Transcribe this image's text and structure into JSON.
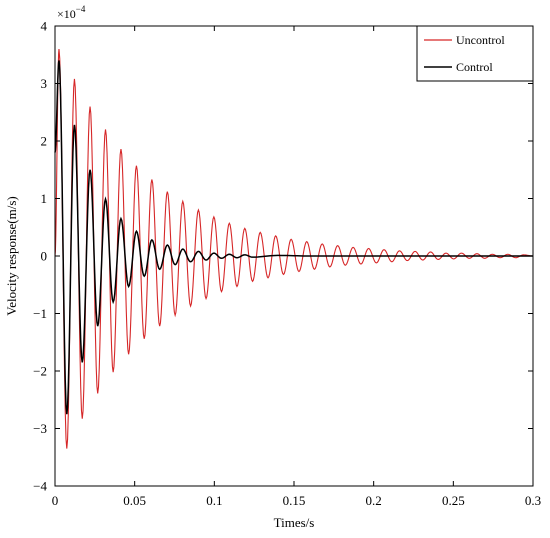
{
  "chart_data": {
    "type": "line",
    "title": "",
    "xlabel": "Times/s",
    "ylabel": "Velocity response(m/s)",
    "y_multiplier_label": "×10",
    "y_multiplier_exponent": "−4",
    "xlim": [
      0,
      0.3
    ],
    "ylim": [
      -4,
      4
    ],
    "x_ticks": [
      0,
      0.05,
      0.1,
      0.15,
      0.2,
      0.25,
      0.3
    ],
    "x_tick_labels": [
      "0",
      "0.05",
      "0.1",
      "0.15",
      "0.2",
      "0.25",
      "0.3"
    ],
    "y_ticks": [
      -4,
      -3,
      -2,
      -1,
      0,
      1,
      2,
      3,
      4
    ],
    "y_tick_labels": [
      "−4",
      "−3",
      "−2",
      "−1",
      "0",
      "1",
      "2",
      "3",
      "4"
    ],
    "grid": false,
    "legend_position": "top-right",
    "series": [
      {
        "name": "Uncontrol",
        "color": "#d62728",
        "x": [
          0,
          0.0025,
          0.0074,
          0.0122,
          0.0171,
          0.022,
          0.0268,
          0.0317,
          0.0365,
          0.0414,
          0.0462,
          0.0511,
          0.056,
          0.0608,
          0.0657,
          0.0705,
          0.0754,
          0.0802,
          0.0851,
          0.09,
          0.0948,
          0.0997,
          0.1045,
          0.1094,
          0.1142,
          0.1191,
          0.124,
          0.1288,
          0.1337,
          0.1385,
          0.1434,
          0.1482,
          0.1531,
          0.158,
          0.1628,
          0.1677,
          0.1725,
          0.1774,
          0.1822,
          0.1871,
          0.192,
          0.1968,
          0.2017,
          0.2065,
          0.2114,
          0.2162,
          0.2211,
          0.226,
          0.2308,
          0.2357,
          0.2405,
          0.2454,
          0.2502,
          0.2551,
          0.26,
          0.2648,
          0.2697,
          0.2745,
          0.2794,
          0.2842,
          0.2891,
          0.294,
          0.3
        ],
        "y": [
          0,
          3.6,
          -3.35,
          3.08,
          -2.83,
          2.6,
          -2.39,
          2.2,
          -2.02,
          1.86,
          -1.71,
          1.57,
          -1.44,
          1.33,
          -1.22,
          1.12,
          -1.03,
          0.95,
          -0.87,
          0.8,
          -0.74,
          0.68,
          -0.62,
          0.57,
          -0.53,
          0.48,
          -0.44,
          0.41,
          -0.38,
          0.35,
          -0.32,
          0.29,
          -0.27,
          0.25,
          -0.23,
          0.21,
          -0.19,
          0.18,
          -0.16,
          0.15,
          -0.14,
          0.13,
          -0.12,
          0.11,
          -0.1,
          0.09,
          -0.08,
          0.08,
          -0.07,
          0.07,
          -0.06,
          0.05,
          -0.05,
          0.05,
          -0.04,
          0.04,
          -0.04,
          0.03,
          -0.03,
          0.03,
          -0.03,
          0.02,
          0
        ]
      },
      {
        "name": "Control",
        "color": "#000000",
        "x": [
          0,
          0.0025,
          0.0074,
          0.0122,
          0.0171,
          0.022,
          0.0268,
          0.0317,
          0.0365,
          0.0414,
          0.0462,
          0.0511,
          0.056,
          0.0608,
          0.0657,
          0.0705,
          0.0754,
          0.0802,
          0.0851,
          0.09,
          0.0948,
          0.0997,
          0.1045,
          0.1094,
          0.1142,
          0.1191,
          0.124,
          0.14,
          0.16,
          0.3
        ],
        "y": [
          1.8,
          3.4,
          -2.75,
          2.28,
          -1.85,
          1.5,
          -1.22,
          0.99,
          -0.8,
          0.65,
          -0.53,
          0.43,
          -0.35,
          0.28,
          -0.23,
          0.19,
          -0.15,
          0.12,
          -0.1,
          0.08,
          -0.07,
          0.05,
          -0.04,
          0.03,
          -0.03,
          0.02,
          -0.02,
          0.01,
          0,
          0
        ]
      }
    ]
  }
}
